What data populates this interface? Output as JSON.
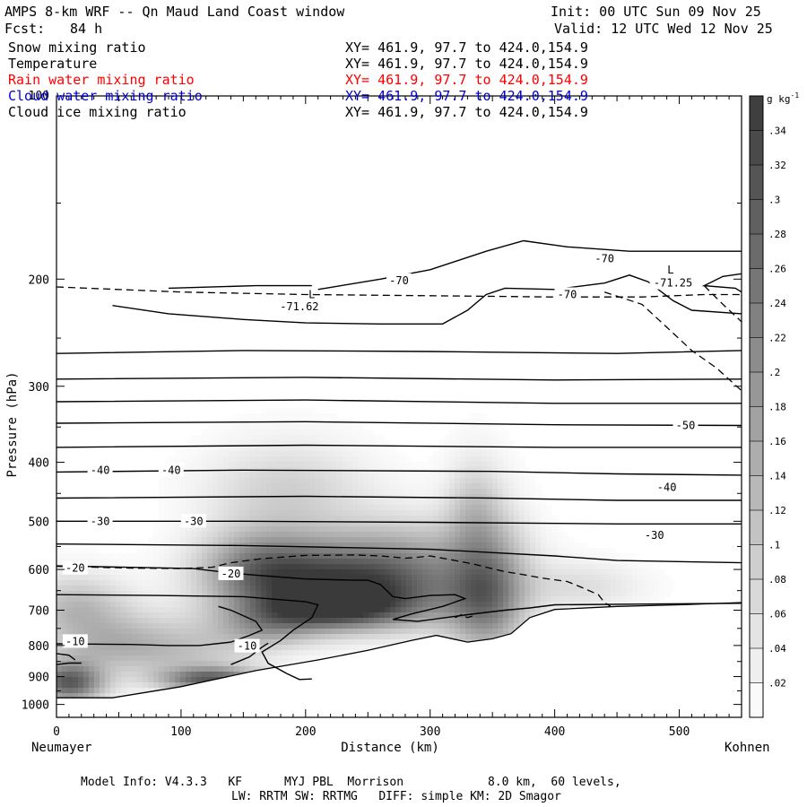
{
  "header": {
    "title": "AMPS 8-km WRF -- Qn Maud Land Coast window",
    "init": "Init: 00 UTC Sun 09 Nov 25",
    "fcst_label": "Fcst:",
    "fcst_value": "84 h",
    "valid": "Valid: 12 UTC Wed 12 Nov 25"
  },
  "fields": [
    {
      "name": "Snow mixing ratio",
      "xy": "XY= 461.9, 97.7 to 424.0,154.9",
      "color": "#000000"
    },
    {
      "name": "Temperature",
      "xy": "XY= 461.9, 97.7 to 424.0,154.9",
      "color": "#000000"
    },
    {
      "name": "Rain water mixing ratio",
      "xy": "XY= 461.9, 97.7 to 424.0,154.9",
      "color": "#ff0000"
    },
    {
      "name": "Cloud water mixing ratio",
      "xy": "XY= 461.9, 97.7 to 424.0,154.9",
      "color": "#0000cc"
    },
    {
      "name": "Cloud ice mixing ratio",
      "xy": "XY= 461.9, 97.7 to 424.0,154.9",
      "color": "#000000"
    }
  ],
  "chart_data": {
    "type": "heatmap",
    "xlabel": "Distance (km)",
    "ylabel": "Pressure (hPa)",
    "xlim": [
      0,
      550
    ],
    "ylim": [
      1050,
      100
    ],
    "x_ticks": [
      0,
      100,
      200,
      300,
      400,
      500
    ],
    "y_ticks": [
      200,
      300,
      400,
      500,
      600,
      700,
      800,
      900,
      1000
    ],
    "left_endpoint": "Neumayer",
    "right_endpoint": "Kohnen",
    "colorbar": {
      "unit_label": "g kg",
      "unit_exponent": "-1",
      "ticks": [
        ".02",
        ".04",
        ".06",
        ".08",
        ".1",
        ".12",
        ".14",
        ".16",
        ".18",
        ".2",
        ".22",
        ".24",
        ".26",
        ".28",
        ".3",
        ".32",
        ".34"
      ],
      "min": 0.0,
      "max": 0.36
    },
    "shading_blobs": [
      {
        "x": 185,
        "p": 440,
        "sx": 45,
        "sp": 50,
        "amp": 0.08
      },
      {
        "x": 245,
        "p": 640,
        "sx": 55,
        "sp": 70,
        "amp": 0.35
      },
      {
        "x": 165,
        "p": 600,
        "sx": 35,
        "sp": 60,
        "amp": 0.22
      },
      {
        "x": 215,
        "p": 700,
        "sx": 45,
        "sp": 35,
        "amp": 0.2
      },
      {
        "x": 345,
        "p": 660,
        "sx": 22,
        "sp": 110,
        "amp": 0.24
      },
      {
        "x": 335,
        "p": 470,
        "sx": 15,
        "sp": 55,
        "amp": 0.07
      },
      {
        "x": 15,
        "p": 690,
        "sx": 30,
        "sp": 55,
        "amp": 0.12
      },
      {
        "x": 10,
        "p": 920,
        "sx": 20,
        "sp": 50,
        "amp": 0.3
      },
      {
        "x": 125,
        "p": 910,
        "sx": 28,
        "sp": 28,
        "amp": 0.27
      },
      {
        "x": 100,
        "p": 820,
        "sx": 45,
        "sp": 70,
        "amp": 0.1
      },
      {
        "x": 40,
        "p": 790,
        "sx": 35,
        "sp": 55,
        "amp": 0.1
      },
      {
        "x": 170,
        "p": 750,
        "sx": 30,
        "sp": 40,
        "amp": 0.12
      },
      {
        "x": 420,
        "p": 640,
        "sx": 35,
        "sp": 40,
        "amp": 0.06
      },
      {
        "x": 290,
        "p": 550,
        "sx": 50,
        "sp": 50,
        "amp": 0.05
      }
    ],
    "terrain": [
      [
        0,
        975
      ],
      [
        45,
        975
      ],
      [
        100,
        935
      ],
      [
        160,
        880
      ],
      [
        210,
        845
      ],
      [
        250,
        815
      ],
      [
        285,
        785
      ],
      [
        305,
        770
      ],
      [
        330,
        790
      ],
      [
        350,
        780
      ],
      [
        365,
        765
      ],
      [
        380,
        720
      ],
      [
        400,
        698
      ],
      [
        450,
        690
      ],
      [
        500,
        686
      ],
      [
        550,
        680
      ]
    ],
    "isotherm_labels": [
      "-70",
      "-70",
      "-70",
      "-71.62",
      "-71.25",
      "-50",
      "-40",
      "-40",
      "-40",
      "-30",
      "-30",
      "-30",
      "-20",
      "-20",
      "-10",
      "-10"
    ],
    "extremum_labels": [
      "L",
      "L"
    ]
  },
  "footer": {
    "line1": "Model Info: V4.3.3   KF      MYJ PBL  Morrison            8.0 km,  60 levels,",
    "line2": "LW: RRTM SW: RRTMG   DIFF: simple KM: 2D Smagor"
  }
}
